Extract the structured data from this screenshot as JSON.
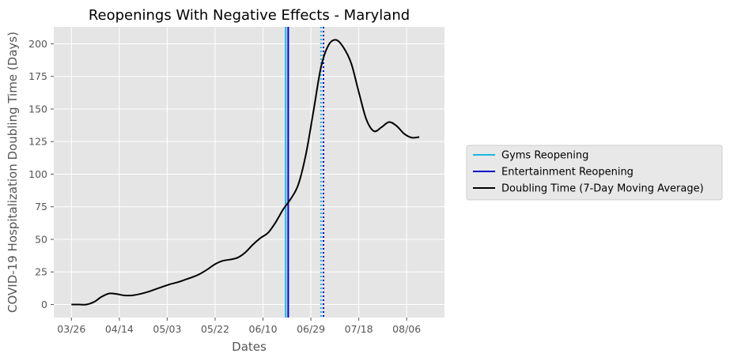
{
  "chart_data": {
    "type": "line",
    "title": "Reopenings With Negative Effects - Maryland",
    "xlabel": "Dates",
    "ylabel": "COVID-19 Hospitalization Doubling Time (Days)",
    "x_tick_labels": [
      "03/26",
      "04/14",
      "05/03",
      "05/22",
      "06/10",
      "06/29",
      "07/18",
      "08/06"
    ],
    "x_tick_dates": [
      "2020-03-26",
      "2020-04-14",
      "2020-05-03",
      "2020-05-22",
      "2020-06-10",
      "2020-06-29",
      "2020-07-18",
      "2020-08-06"
    ],
    "xlim": [
      "2020-03-19",
      "2020-08-21"
    ],
    "y_ticks": [
      0,
      25,
      50,
      75,
      100,
      125,
      150,
      175,
      200
    ],
    "ylim": [
      -10,
      213
    ],
    "grid": true,
    "legend_position": "center-right outside",
    "series": [
      {
        "name": "Doubling Time (7-Day Moving Average)",
        "color": "#000000",
        "points": [
          [
            "2020-03-26",
            0
          ],
          [
            "2020-03-29",
            0
          ],
          [
            "2020-04-01",
            0
          ],
          [
            "2020-04-04",
            2
          ],
          [
            "2020-04-07",
            6
          ],
          [
            "2020-04-10",
            8.5
          ],
          [
            "2020-04-13",
            8
          ],
          [
            "2020-04-16",
            7
          ],
          [
            "2020-04-19",
            7
          ],
          [
            "2020-04-22",
            8
          ],
          [
            "2020-04-25",
            9.5
          ],
          [
            "2020-04-28",
            11.5
          ],
          [
            "2020-05-01",
            13.5
          ],
          [
            "2020-05-04",
            15.5
          ],
          [
            "2020-05-07",
            17
          ],
          [
            "2020-05-10",
            19
          ],
          [
            "2020-05-13",
            21
          ],
          [
            "2020-05-16",
            23.5
          ],
          [
            "2020-05-19",
            27
          ],
          [
            "2020-05-22",
            31
          ],
          [
            "2020-05-25",
            33.5
          ],
          [
            "2020-05-28",
            34.5
          ],
          [
            "2020-05-31",
            36
          ],
          [
            "2020-06-03",
            40
          ],
          [
            "2020-06-06",
            46
          ],
          [
            "2020-06-09",
            51
          ],
          [
            "2020-06-12",
            55
          ],
          [
            "2020-06-15",
            63
          ],
          [
            "2020-06-18",
            73
          ],
          [
            "2020-06-21",
            81
          ],
          [
            "2020-06-24",
            92
          ],
          [
            "2020-06-27",
            115
          ],
          [
            "2020-06-30",
            148
          ],
          [
            "2020-07-03",
            182
          ],
          [
            "2020-07-06",
            199
          ],
          [
            "2020-07-09",
            203
          ],
          [
            "2020-07-12",
            197
          ],
          [
            "2020-07-15",
            185
          ],
          [
            "2020-07-18",
            163
          ],
          [
            "2020-07-21",
            142
          ],
          [
            "2020-07-24",
            133
          ],
          [
            "2020-07-27",
            136
          ],
          [
            "2020-07-30",
            140
          ],
          [
            "2020-08-02",
            137
          ],
          [
            "2020-08-05",
            131
          ],
          [
            "2020-08-08",
            128
          ],
          [
            "2020-08-11",
            128.5
          ]
        ]
      }
    ],
    "vertical_lines": [
      {
        "name": "Gyms Reopening",
        "date": "2020-06-19",
        "color": "#1ab8e0",
        "style": "solid"
      },
      {
        "name": "Entertainment Reopening",
        "date": "2020-06-20",
        "color": "#0000cc",
        "style": "solid"
      },
      {
        "name": "",
        "date": "2020-07-03",
        "color": "#1ab8e0",
        "style": "dotted"
      },
      {
        "name": "",
        "date": "2020-07-04",
        "color": "#0000cc",
        "style": "dotted"
      }
    ],
    "legend": [
      {
        "label": "Gyms Reopening",
        "color": "#1ab8e0"
      },
      {
        "label": "Entertainment Reopening",
        "color": "#0000cc"
      },
      {
        "label": "Doubling Time (7-Day Moving Average)",
        "color": "#000000"
      }
    ],
    "colors": {
      "plot_background": "#e5e5e5",
      "grid": "#ffffff",
      "text": "#555555"
    }
  }
}
